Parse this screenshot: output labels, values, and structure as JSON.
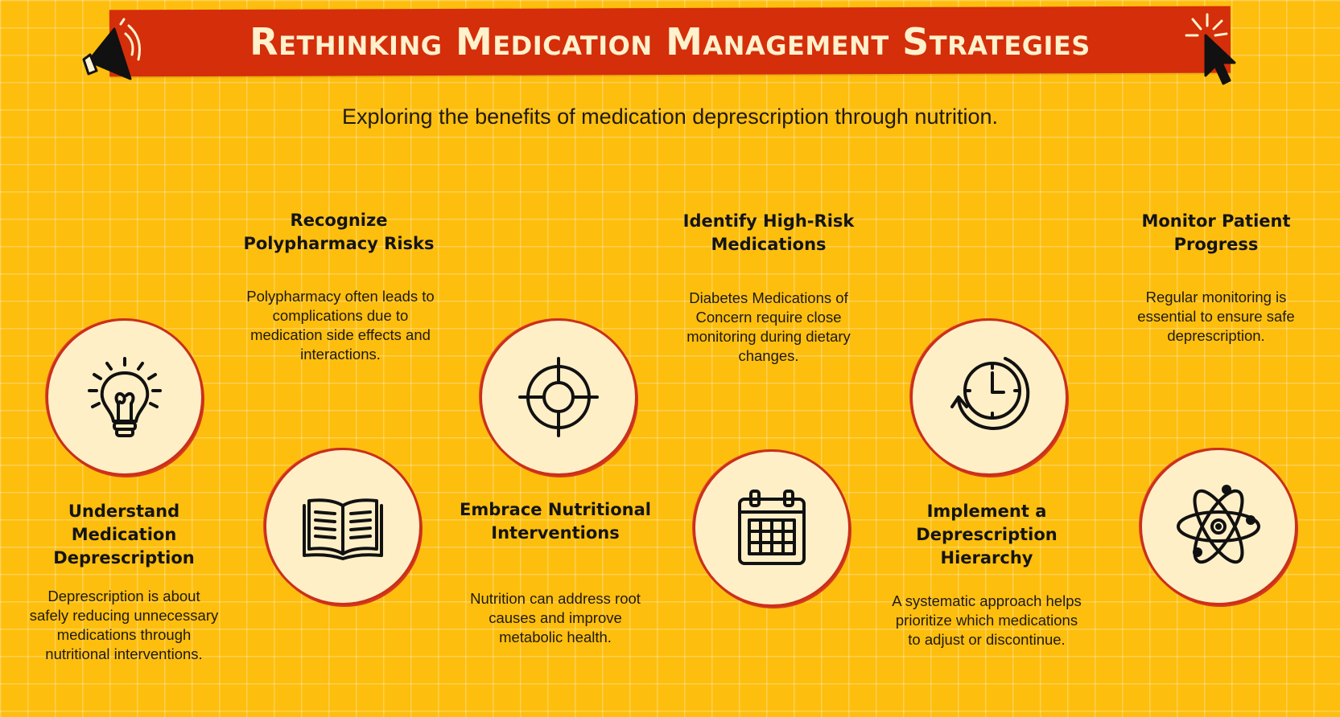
{
  "title": "Rethinking Medication Management Strategies",
  "subtitle": "Exploring the benefits of medication deprescription through nutrition.",
  "colors": {
    "background": "#FDBE0E",
    "banner": "#D42E0A",
    "circle_fill": "#FFEFC7",
    "circle_border": "#C9301A"
  },
  "steps": [
    {
      "icon": "lightbulb-icon",
      "heading": "Understand Medication Deprescription",
      "text": "Deprescription is about safely reducing unnecessary medications through nutritional interventions."
    },
    {
      "icon": "open-book-icon",
      "heading": "Recognize Polypharmacy Risks",
      "text": "Polypharmacy often leads to complications due to medication side effects and interactions."
    },
    {
      "icon": "crosshair-target-icon",
      "heading": "Embrace Nutritional Interventions",
      "text": "Nutrition can address root causes and improve metabolic health."
    },
    {
      "icon": "calendar-icon",
      "heading": "Identify High-Risk Medications",
      "text": "Diabetes Medications of Concern require close monitoring during dietary changes."
    },
    {
      "icon": "clock-cycle-icon",
      "heading": "Implement a Deprescription Hierarchy",
      "text": "A systematic approach helps prioritize which medications to adjust or discontinue."
    },
    {
      "icon": "atom-icon",
      "heading": "Monitor Patient Progress",
      "text": "Regular monitoring is essential to ensure safe deprescription."
    }
  ]
}
